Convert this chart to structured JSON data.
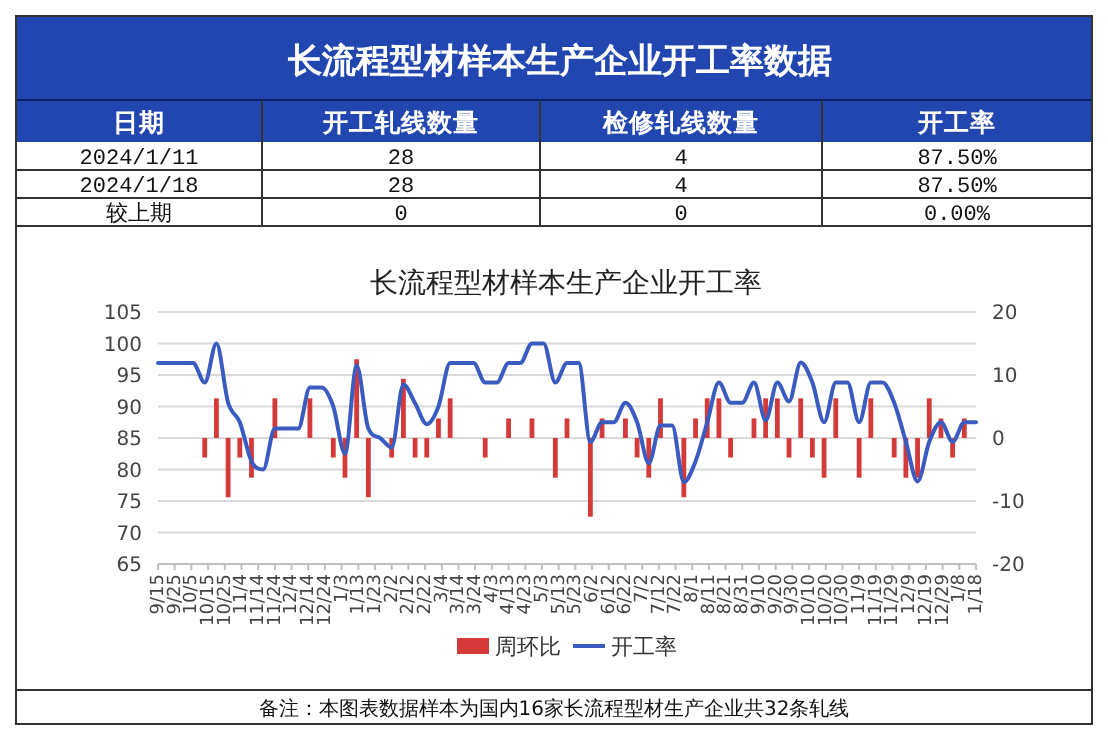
{
  "chart_data": [
    {
      "type": "other",
      "title": "长流程型材样本生产企业开工率数据",
      "categories": [
        "日期",
        "开工轧线数量",
        "检修轧线数量",
        "开工率"
      ],
      "y_categories": [
        "2024/1/11",
        "2024/1/18",
        "较上期"
      ],
      "cell_labels": [
        [
          "28",
          "4",
          "87.50%"
        ],
        [
          "28",
          "4",
          "87.50%"
        ],
        [
          "0",
          "0",
          "0.00%"
        ]
      ]
    },
    {
      "type": "bar",
      "title": "长流程型材样本生产企业开工率",
      "x": [
        "2022-09-15",
        "2022-09-22",
        "2022-09-29",
        "2022-10-06",
        "2022-10-13",
        "2022-10-20",
        "2022-10-27",
        "2022-11-03",
        "2022-11-10",
        "2022-11-17",
        "2022-11-24",
        "2022-12-01",
        "2022-12-08",
        "2022-12-15",
        "2022-12-22",
        "2022-12-29",
        "2023-01-05",
        "2023-01-12",
        "2023-01-19",
        "2023-01-26",
        "2023-02-02",
        "2023-02-09",
        "2023-02-16",
        "2023-02-23",
        "2023-03-02",
        "2023-03-09",
        "2023-03-16",
        "2023-03-23",
        "2023-03-30",
        "2023-04-06",
        "2023-04-13",
        "2023-04-20",
        "2023-04-27",
        "2023-05-04",
        "2023-05-11",
        "2023-05-18",
        "2023-05-25",
        "2023-06-01",
        "2023-06-08",
        "2023-06-15",
        "2023-06-22",
        "2023-06-29",
        "2023-07-06",
        "2023-07-13",
        "2023-07-20",
        "2023-07-27",
        "2023-08-03",
        "2023-08-10",
        "2023-08-17",
        "2023-08-24",
        "2023-08-31",
        "2023-09-07",
        "2023-09-14",
        "2023-09-21",
        "2023-09-28",
        "2023-10-05",
        "2023-10-12",
        "2023-10-19",
        "2023-10-26",
        "2023-11-02",
        "2023-11-09",
        "2023-11-16",
        "2023-11-23",
        "2023-11-30",
        "2023-12-07",
        "2023-12-14",
        "2023-12-21",
        "2023-12-28",
        "2024-01-04",
        "2024-01-11",
        "2024-01-18"
      ],
      "series": [
        {
          "name": "周环比",
          "type": "bar",
          "axis": "y2",
          "color": "#d43a3a",
          "values": [
            null,
            null,
            null,
            null,
            -3.1,
            6.3,
            -9.4,
            -3.1,
            -6.3,
            null,
            6.3,
            null,
            null,
            6.3,
            null,
            -3.1,
            -6.3,
            12.5,
            -9.4,
            null,
            -3.1,
            9.4,
            -3.1,
            -3.1,
            3.1,
            6.3,
            null,
            null,
            -3.1,
            null,
            3.1,
            null,
            3.1,
            null,
            -6.3,
            3.1,
            null,
            -12.5,
            3.1,
            null,
            3.1,
            -3.1,
            -6.3,
            6.3,
            null,
            -9.4,
            3.1,
            6.3,
            6.3,
            -3.1,
            null,
            3.1,
            6.3,
            6.3,
            -3.1,
            6.3,
            -3.1,
            -6.3,
            6.3,
            null,
            -6.3,
            6.3,
            null,
            -3.1,
            -6.3,
            -6.3,
            6.3,
            3.1,
            -3.1,
            3.1,
            null
          ]
        },
        {
          "name": "开工率",
          "type": "line",
          "color": "#3a5bc0",
          "values": [
            96.9,
            96.9,
            96.9,
            96.9,
            93.8,
            100,
            90.6,
            87.5,
            81.3,
            80,
            86.5,
            86.5,
            86.5,
            93,
            93,
            90,
            82.5,
            96.5,
            86.5,
            85,
            83.5,
            93.5,
            90.5,
            87.2,
            90,
            96.9,
            96.9,
            96.9,
            93.8,
            93.8,
            96.9,
            96.9,
            100,
            100,
            93.8,
            96.9,
            96.9,
            84.4,
            87.5,
            87.5,
            90.6,
            87.5,
            81,
            87,
            87,
            78,
            81.3,
            87.5,
            93.8,
            90.6,
            90.6,
            93.8,
            87.8,
            93.8,
            90.8,
            97,
            93.8,
            87.5,
            93.8,
            93.8,
            87.5,
            93.8,
            93.8,
            90.6,
            84.4,
            78.1,
            84.4,
            87.5,
            84.4,
            87.5,
            87.5
          ]
        }
      ],
      "xlim": [
        "2022-09-15",
        "2024-01-18"
      ],
      "xticks": [
        {
          "value": "2022-09-15",
          "label": "9/15"
        },
        {
          "value": "2022-09-25",
          "label": "9/25"
        },
        {
          "value": "2022-10-05",
          "label": "10/5"
        },
        {
          "value": "2022-10-15",
          "label": "10/15"
        },
        {
          "value": "2022-10-25",
          "label": "10/25"
        },
        {
          "value": "2022-11-04",
          "label": "11/4"
        },
        {
          "value": "2022-11-14",
          "label": "11/14"
        },
        {
          "value": "2022-11-24",
          "label": "11/24"
        },
        {
          "value": "2022-12-04",
          "label": "12/4"
        },
        {
          "value": "2022-12-14",
          "label": "12/14"
        },
        {
          "value": "2022-12-24",
          "label": "12/24"
        },
        {
          "value": "2023-01-03",
          "label": "1/3"
        },
        {
          "value": "2023-01-13",
          "label": "1/13"
        },
        {
          "value": "2023-01-23",
          "label": "1/23"
        },
        {
          "value": "2023-02-02",
          "label": "2/2"
        },
        {
          "value": "2023-02-12",
          "label": "2/12"
        },
        {
          "value": "2023-02-22",
          "label": "2/22"
        },
        {
          "value": "2023-03-04",
          "label": "3/4"
        },
        {
          "value": "2023-03-14",
          "label": "3/14"
        },
        {
          "value": "2023-03-24",
          "label": "3/24"
        },
        {
          "value": "2023-04-03",
          "label": "4/3"
        },
        {
          "value": "2023-04-13",
          "label": "4/13"
        },
        {
          "value": "2023-04-23",
          "label": "4/23"
        },
        {
          "value": "2023-05-03",
          "label": "5/3"
        },
        {
          "value": "2023-05-13",
          "label": "5/13"
        },
        {
          "value": "2023-05-23",
          "label": "5/23"
        },
        {
          "value": "2023-06-02",
          "label": "6/2"
        },
        {
          "value": "2023-06-12",
          "label": "6/12"
        },
        {
          "value": "2023-06-22",
          "label": "6/22"
        },
        {
          "value": "2023-07-02",
          "label": "7/2"
        },
        {
          "value": "2023-07-12",
          "label": "7/12"
        },
        {
          "value": "2023-07-22",
          "label": "7/22"
        },
        {
          "value": "2023-08-01",
          "label": "8/1"
        },
        {
          "value": "2023-08-11",
          "label": "8/11"
        },
        {
          "value": "2023-08-21",
          "label": "8/21"
        },
        {
          "value": "2023-08-31",
          "label": "8/31"
        },
        {
          "value": "2023-09-10",
          "label": "9/10"
        },
        {
          "value": "2023-09-20",
          "label": "9/20"
        },
        {
          "value": "2023-09-30",
          "label": "9/30"
        },
        {
          "value": "2023-10-10",
          "label": "10/10"
        },
        {
          "value": "2023-10-20",
          "label": "10/20"
        },
        {
          "value": "2023-10-30",
          "label": "10/30"
        },
        {
          "value": "2023-11-09",
          "label": "11/9"
        },
        {
          "value": "2023-11-19",
          "label": "11/19"
        },
        {
          "value": "2023-11-29",
          "label": "11/29"
        },
        {
          "value": "2023-12-09",
          "label": "12/9"
        },
        {
          "value": "2023-12-19",
          "label": "12/19"
        },
        {
          "value": "2023-12-29",
          "label": "12/29"
        },
        {
          "value": "2024-01-08",
          "label": "1/8"
        },
        {
          "value": "2024-01-18",
          "label": "1/18"
        }
      ],
      "ylim": [
        65,
        105
      ],
      "yticks": [
        65,
        70,
        75,
        80,
        85,
        90,
        95,
        100,
        105
      ],
      "y2lim": [
        -20,
        20
      ],
      "y2ticks": [
        -20,
        -10,
        0,
        10,
        20
      ],
      "grid": "y",
      "legend": "bottom",
      "annotations": [
        "备注：本图表数据样本为国内16家长流程型材生产企业共32条轧线"
      ]
    }
  ]
}
